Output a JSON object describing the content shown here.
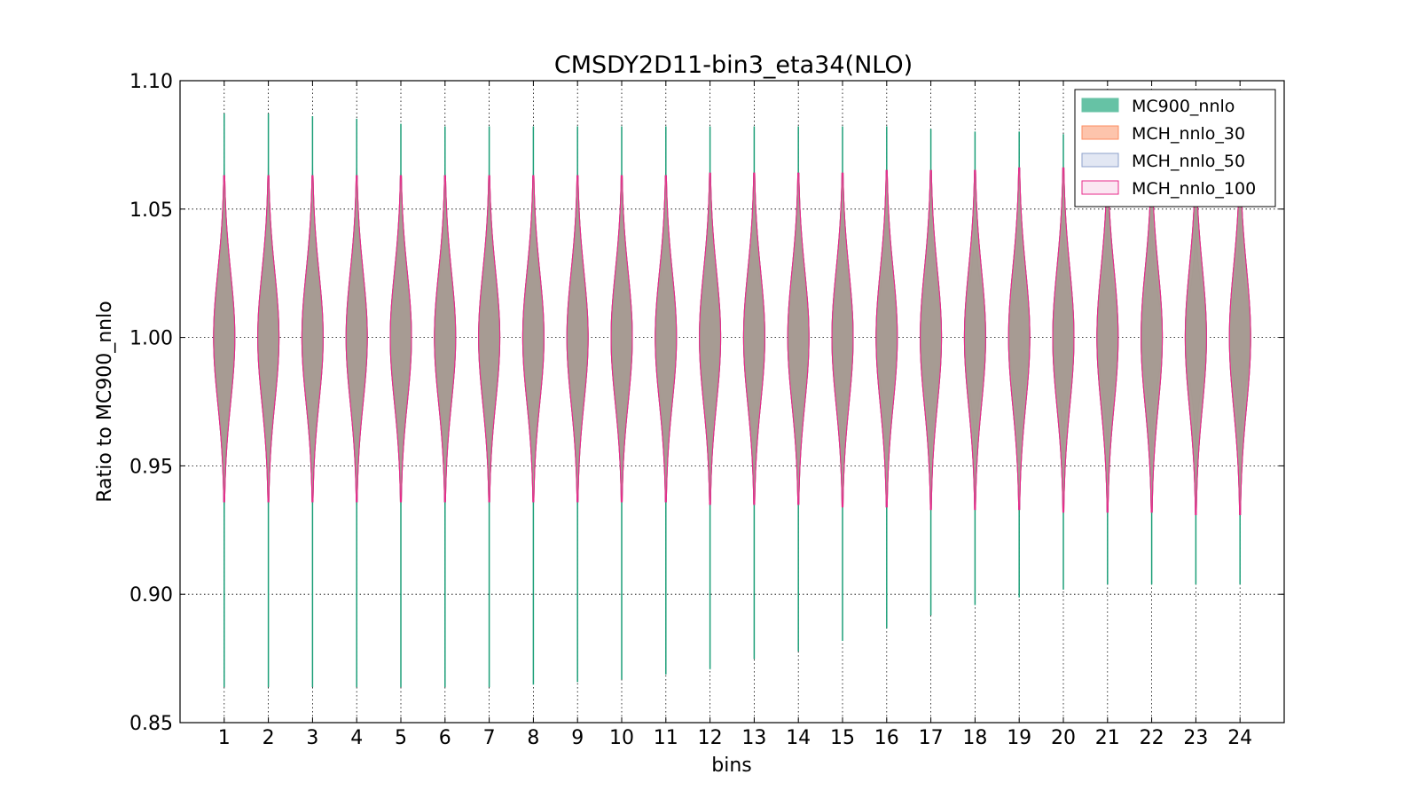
{
  "chart_data": {
    "type": "violin",
    "title": "CMSDY2D11-bin3_eta34(NLO)",
    "xlabel": "bins",
    "ylabel": "Ratio to MC900_nnlo",
    "ylim": [
      0.85,
      1.1
    ],
    "xlim": [
      0,
      25
    ],
    "grid": true,
    "legend_position": "top-right",
    "y_ticks": [
      "0.85",
      "0.90",
      "0.95",
      "1.00",
      "1.05",
      "1.10"
    ],
    "categories": [
      "1",
      "2",
      "3",
      "4",
      "5",
      "6",
      "7",
      "8",
      "9",
      "10",
      "11",
      "12",
      "13",
      "14",
      "15",
      "16",
      "17",
      "18",
      "19",
      "20",
      "21",
      "22",
      "23",
      "24"
    ],
    "series": [
      {
        "name": "MC900_nnlo",
        "color": "#66c2a5",
        "edge": "#1b9e77",
        "min": [
          0.864,
          0.864,
          0.864,
          0.864,
          0.864,
          0.864,
          0.864,
          0.865,
          0.866,
          0.867,
          0.869,
          0.871,
          0.875,
          0.878,
          0.882,
          0.887,
          0.892,
          0.896,
          0.899,
          0.902,
          0.904,
          0.904,
          0.904,
          0.904
        ],
        "max": [
          1.087,
          1.087,
          1.086,
          1.085,
          1.083,
          1.082,
          1.082,
          1.082,
          1.082,
          1.082,
          1.082,
          1.082,
          1.082,
          1.082,
          1.082,
          1.082,
          1.081,
          1.08,
          1.08,
          1.079,
          1.078,
          1.076,
          1.075,
          1.074
        ],
        "center": [
          1.0,
          1.0,
          1.0,
          1.0,
          1.0,
          1.0,
          1.0,
          1.0,
          1.0,
          1.0,
          1.0,
          1.0,
          1.0,
          1.0,
          1.0,
          1.0,
          1.0,
          1.0,
          1.0,
          1.0,
          1.0,
          1.0,
          1.0,
          1.0
        ],
        "half_width": [
          0.23,
          0.23,
          0.23,
          0.23,
          0.23,
          0.23,
          0.23,
          0.23,
          0.23,
          0.23,
          0.23,
          0.23,
          0.23,
          0.23,
          0.23,
          0.23,
          0.23,
          0.23,
          0.23,
          0.23,
          0.23,
          0.23,
          0.23,
          0.23
        ]
      },
      {
        "name": "MCH_nnlo_30",
        "color": "#fc8d62",
        "edge": "#e7542a",
        "min": [
          0.936,
          0.936,
          0.936,
          0.936,
          0.936,
          0.936,
          0.936,
          0.936,
          0.936,
          0.936,
          0.936,
          0.935,
          0.935,
          0.935,
          0.934,
          0.934,
          0.933,
          0.933,
          0.933,
          0.932,
          0.932,
          0.932,
          0.931,
          0.931
        ],
        "max": [
          1.063,
          1.063,
          1.063,
          1.063,
          1.063,
          1.063,
          1.063,
          1.063,
          1.063,
          1.063,
          1.063,
          1.064,
          1.064,
          1.064,
          1.064,
          1.065,
          1.065,
          1.065,
          1.066,
          1.066,
          1.066,
          1.067,
          1.067,
          1.067
        ],
        "center": [
          1.0,
          1.0,
          1.0,
          1.0,
          1.0,
          1.0,
          1.0,
          1.0,
          1.0,
          1.0,
          1.0,
          1.0,
          1.0,
          1.0,
          1.0,
          1.0,
          1.0,
          1.0,
          1.0,
          1.0,
          1.0,
          1.0,
          1.0,
          1.0
        ],
        "half_width": [
          0.24,
          0.24,
          0.24,
          0.24,
          0.24,
          0.24,
          0.24,
          0.24,
          0.24,
          0.24,
          0.24,
          0.24,
          0.24,
          0.24,
          0.24,
          0.24,
          0.24,
          0.24,
          0.24,
          0.24,
          0.24,
          0.24,
          0.24,
          0.24
        ]
      },
      {
        "name": "MCH_nnlo_50",
        "color": "#8da0cb",
        "edge": "#6a7fb6",
        "min": [
          0.936,
          0.936,
          0.936,
          0.936,
          0.936,
          0.936,
          0.936,
          0.936,
          0.936,
          0.936,
          0.936,
          0.935,
          0.935,
          0.935,
          0.934,
          0.934,
          0.933,
          0.933,
          0.933,
          0.932,
          0.932,
          0.932,
          0.931,
          0.931
        ],
        "max": [
          1.063,
          1.063,
          1.063,
          1.063,
          1.063,
          1.063,
          1.063,
          1.063,
          1.063,
          1.063,
          1.063,
          1.064,
          1.064,
          1.064,
          1.064,
          1.065,
          1.065,
          1.065,
          1.066,
          1.066,
          1.066,
          1.067,
          1.067,
          1.067
        ],
        "center": [
          1.0,
          1.0,
          1.0,
          1.0,
          1.0,
          1.0,
          1.0,
          1.0,
          1.0,
          1.0,
          1.0,
          1.0,
          1.0,
          1.0,
          1.0,
          1.0,
          1.0,
          1.0,
          1.0,
          1.0,
          1.0,
          1.0,
          1.0,
          1.0
        ],
        "half_width": [
          0.24,
          0.24,
          0.24,
          0.24,
          0.24,
          0.24,
          0.24,
          0.24,
          0.24,
          0.24,
          0.24,
          0.24,
          0.24,
          0.24,
          0.24,
          0.24,
          0.24,
          0.24,
          0.24,
          0.24,
          0.24,
          0.24,
          0.24,
          0.24
        ]
      },
      {
        "name": "MCH_nnlo_100",
        "color": "#fbe0ef",
        "edge": "#e7298a",
        "min": [
          0.936,
          0.936,
          0.936,
          0.936,
          0.936,
          0.936,
          0.936,
          0.936,
          0.936,
          0.936,
          0.936,
          0.935,
          0.935,
          0.935,
          0.934,
          0.934,
          0.933,
          0.933,
          0.933,
          0.932,
          0.932,
          0.932,
          0.931,
          0.931
        ],
        "max": [
          1.063,
          1.063,
          1.063,
          1.063,
          1.063,
          1.063,
          1.063,
          1.063,
          1.063,
          1.063,
          1.063,
          1.064,
          1.064,
          1.064,
          1.064,
          1.065,
          1.065,
          1.065,
          1.066,
          1.066,
          1.066,
          1.067,
          1.067,
          1.067
        ],
        "center": [
          1.0,
          1.0,
          1.0,
          1.0,
          1.0,
          1.0,
          1.0,
          1.0,
          1.0,
          1.0,
          1.0,
          1.0,
          1.0,
          1.0,
          1.0,
          1.0,
          1.0,
          1.0,
          1.0,
          1.0,
          1.0,
          1.0,
          1.0,
          1.0
        ],
        "half_width": [
          0.24,
          0.24,
          0.24,
          0.24,
          0.24,
          0.24,
          0.24,
          0.24,
          0.24,
          0.24,
          0.24,
          0.24,
          0.24,
          0.24,
          0.24,
          0.24,
          0.24,
          0.24,
          0.24,
          0.24,
          0.24,
          0.24,
          0.24,
          0.24
        ]
      }
    ],
    "violin_fill_blend": "#a89a92"
  }
}
